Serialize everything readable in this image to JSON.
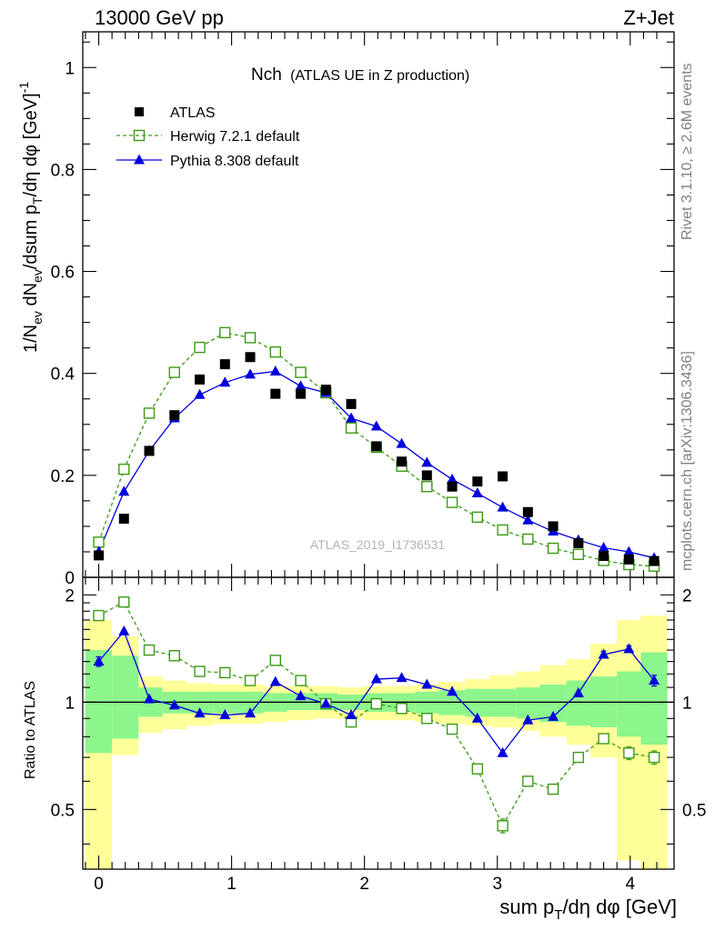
{
  "header": {
    "energy_label": "13000 GeV pp",
    "process_label": "Z+Jet"
  },
  "side_labels": {
    "rivet": "Rivet 3.1.10, ≥ 2.6M events",
    "mcplots": "mcplots.cern.ch [arXiv:1306.3436]"
  },
  "chart_data": {
    "type": "scatter",
    "title": "Nch",
    "subtitle": "(ATLAS UE in Z production)",
    "watermark": "ATLAS_2019_I1736531",
    "xlabel": "sum p_T/dη dφ [GeV]",
    "ylabel": "1/N_ev dN_ev/dsum p_T/dη dφ  [GeV]^-1",
    "xlim": [
      -0.12,
      4.33
    ],
    "ylim": [
      0,
      1.07
    ],
    "x_ticks": [
      0,
      1,
      2,
      3,
      4
    ],
    "x_tick_labels": [
      "0",
      "1",
      "2",
      "3",
      "4"
    ],
    "y_ticks": [
      0,
      0.2,
      0.4,
      0.6,
      0.8,
      1
    ],
    "y_tick_labels": [
      "0",
      "0.2",
      "0.4",
      "0.6",
      "0.8",
      "1"
    ],
    "x": [
      0.0,
      0.19,
      0.38,
      0.57,
      0.76,
      0.95,
      1.14,
      1.33,
      1.52,
      1.71,
      1.9,
      2.09,
      2.28,
      2.47,
      2.66,
      2.85,
      3.04,
      3.23,
      3.42,
      3.61,
      3.8,
      3.99,
      4.18
    ],
    "series": [
      {
        "name": "ATLAS",
        "style": "data",
        "color": "#000000",
        "values": [
          0.043,
          0.115,
          0.248,
          0.318,
          0.388,
          0.418,
          0.432,
          0.36,
          0.36,
          0.368,
          0.34,
          0.257,
          0.227,
          0.2,
          0.178,
          0.188,
          0.198,
          0.128,
          0.1,
          0.067,
          0.042,
          0.035,
          0.032
        ]
      },
      {
        "name": "Herwig 7.2.1 default",
        "style": "dashed-open-square",
        "color": "#3b9a14",
        "values": [
          0.069,
          0.212,
          0.322,
          0.402,
          0.451,
          0.48,
          0.47,
          0.442,
          0.402,
          0.362,
          0.293,
          0.255,
          0.218,
          0.178,
          0.147,
          0.118,
          0.093,
          0.075,
          0.057,
          0.045,
          0.033,
          0.025,
          0.022
        ]
      },
      {
        "name": "Pythia 8.308 default",
        "style": "solid-triangle",
        "color": "#0000dd",
        "values": [
          0.05,
          0.168,
          0.248,
          0.312,
          0.358,
          0.382,
          0.398,
          0.404,
          0.375,
          0.362,
          0.312,
          0.296,
          0.262,
          0.225,
          0.192,
          0.165,
          0.137,
          0.112,
          0.09,
          0.073,
          0.058,
          0.05,
          0.038
        ]
      }
    ],
    "ratio": {
      "ylabel": "Ratio to ATLAS",
      "ylim": [
        0.34,
        2.24
      ],
      "ticks": [
        0.5,
        1,
        2
      ],
      "tick_labels": [
        "0.5",
        "1",
        "2"
      ],
      "x_edges": [
        -0.1,
        0.1,
        0.3,
        0.48,
        0.66,
        0.86,
        1.04,
        1.24,
        1.42,
        1.62,
        1.8,
        2.0,
        2.18,
        2.38,
        2.56,
        2.76,
        2.94,
        3.14,
        3.32,
        3.52,
        3.7,
        3.9,
        4.08,
        4.28
      ],
      "green_band_low": [
        0.72,
        0.79,
        0.91,
        0.93,
        0.93,
        0.93,
        0.93,
        0.94,
        0.95,
        0.95,
        0.95,
        0.94,
        0.94,
        0.93,
        0.92,
        0.91,
        0.91,
        0.9,
        0.88,
        0.86,
        0.85,
        0.8,
        0.76
      ],
      "green_band_high": [
        1.4,
        1.35,
        1.1,
        1.07,
        1.07,
        1.07,
        1.07,
        1.06,
        1.06,
        1.06,
        1.05,
        1.06,
        1.06,
        1.07,
        1.08,
        1.09,
        1.09,
        1.1,
        1.12,
        1.15,
        1.18,
        1.22,
        1.38
      ],
      "yellow_band_low": [
        0.34,
        0.71,
        0.82,
        0.84,
        0.86,
        0.87,
        0.87,
        0.88,
        0.89,
        0.9,
        0.9,
        0.89,
        0.89,
        0.88,
        0.87,
        0.86,
        0.85,
        0.83,
        0.8,
        0.76,
        0.7,
        0.36,
        0.34
      ],
      "yellow_band_high": [
        1.7,
        1.53,
        1.18,
        1.15,
        1.13,
        1.12,
        1.12,
        1.11,
        1.11,
        1.11,
        1.1,
        1.11,
        1.11,
        1.12,
        1.14,
        1.16,
        1.19,
        1.22,
        1.27,
        1.32,
        1.46,
        1.7,
        1.75
      ],
      "herwig": [
        1.75,
        1.91,
        1.4,
        1.35,
        1.22,
        1.21,
        1.15,
        1.31,
        1.15,
        0.99,
        0.88,
        0.99,
        0.96,
        0.9,
        0.84,
        0.65,
        0.45,
        0.6,
        0.57,
        0.7,
        0.79,
        0.72,
        0.7
      ],
      "pythia": [
        1.3,
        1.58,
        1.02,
        0.98,
        0.93,
        0.92,
        0.93,
        1.14,
        1.04,
        0.99,
        0.92,
        1.16,
        1.17,
        1.12,
        1.07,
        0.9,
        0.72,
        0.89,
        0.91,
        1.06,
        1.36,
        1.41,
        1.15
      ],
      "herwig_err": [
        0,
        0,
        0,
        0,
        0,
        0,
        0,
        0,
        0,
        0,
        0,
        0,
        0,
        0,
        0,
        0,
        0.02,
        0,
        0,
        0.02,
        0.02,
        0.03,
        0.03
      ],
      "pythia_err": [
        0.04,
        0,
        0,
        0,
        0,
        0,
        0,
        0,
        0,
        0,
        0,
        0,
        0,
        0,
        0,
        0,
        0,
        0,
        0,
        0,
        0.03,
        0.03,
        0.04
      ]
    }
  }
}
